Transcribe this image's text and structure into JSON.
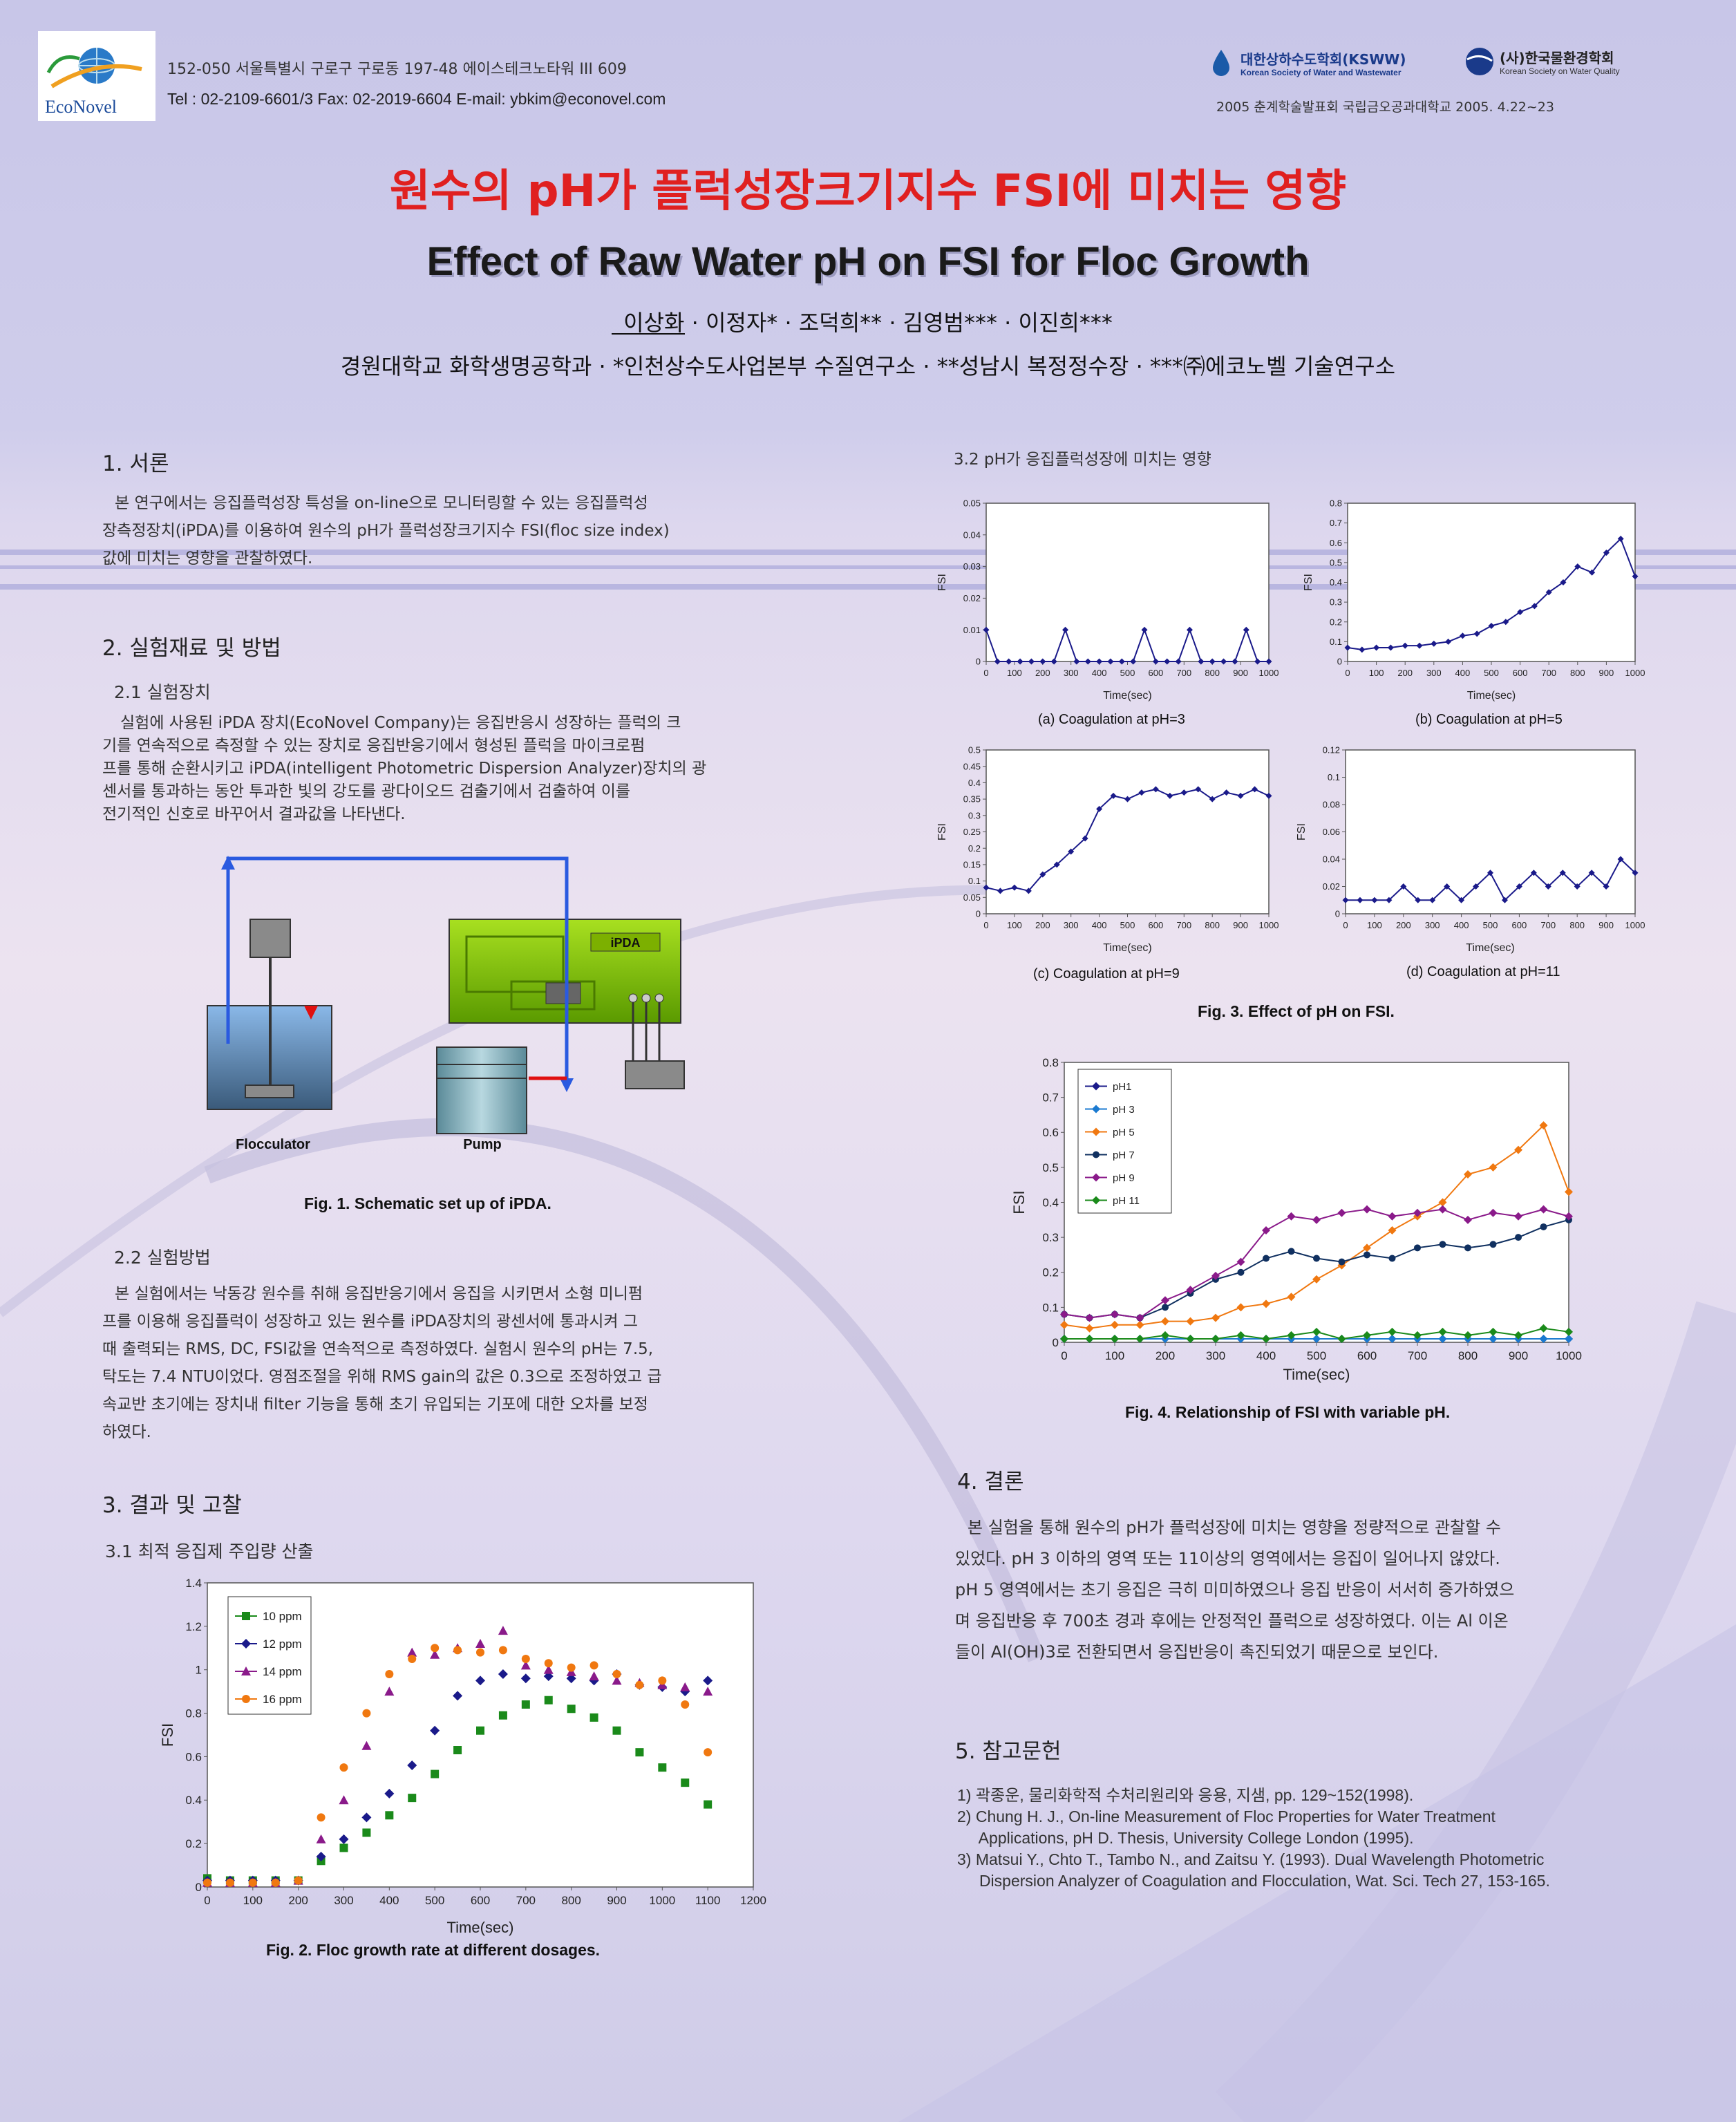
{
  "header": {
    "logo_text": "EcoNovel",
    "address": "152-050 서울특별시 구로구 구로동 197-48 에이스테크노타워 III 609",
    "contact": "Tel : 02-2109-6601/3   Fax: 02-2019-6604   E-mail: ybkim@econovel.com",
    "society1": "대한상하수도학회(KSWW)",
    "society1_en": "Korean Society of Water and Wastewater",
    "society2": "(사)한국물환경학회",
    "society2_en": "Korean Society on Water Quality",
    "conference": "2005 춘계학술발표회  국립금오공과대학교  2005. 4.22~23"
  },
  "title": {
    "korean": "원수의 pH가 플럭성장크기지수 FSI에 미치는 영향",
    "english": "Effect of Raw Water pH on FSI for Floc Growth",
    "authors": "이상화 · 이정자* · 조덕희** · 김영범*** · 이진희***",
    "affiliations": "경원대학교 화학생명공학과 · *인천상수도사업본부 수질연구소 · **성남시 복정정수장 · ***㈜에코노벨 기술연구소"
  },
  "section1": {
    "heading": "1. 서론",
    "lines": [
      "본 연구에서는 응집플럭성장 특성을 on-line으로 모니터링할 수 있는 응집플럭성",
      "장측정장치(iPDA)를 이용하여 원수의 pH가 플럭성장크기지수 FSI(floc size index)",
      "값에 미치는 영향을 관찰하였다."
    ]
  },
  "section2": {
    "heading": "2. 실험재료 및 방법",
    "sub1": "2.1 실험장치",
    "sub1_lines": [
      "실험에 사용된 iPDA 장치(EcoNovel Company)는 응집반응시 성장하는 플럭의 크",
      "기를 연속적으로 측정할 수 있는 장치로 응집반응기에서 형성된 플럭을 마이크로펌",
      "프를 통해 순환시키고 iPDA(intelligent Photometric Dispersion Analyzer)장치의 광",
      "센서를 통과하는 동안 투과한 빛의 강도를 광다이오드 검출기에서 검출하여 이를",
      "전기적인 신호로 바꾸어서 결과값을 나타낸다."
    ],
    "schematic": {
      "ipda_label": "iPDA",
      "flocculator_label": "Flocculator",
      "pump_label": "Pump"
    },
    "fig1_caption": "Fig. 1. Schematic set up of iPDA.",
    "sub2": "2.2 실험방법",
    "sub2_lines": [
      "본 실험에서는 낙동강 원수를 취해 응집반응기에서 응집을 시키면서 소형 미니펌",
      "프를 이용해 응집플럭이 성장하고 있는 원수를 iPDA장치의 광센서에 통과시켜 그",
      "때 출력되는 RMS, DC, FSI값을 연속적으로 측정하였다. 실험시 원수의 pH는 7.5,",
      "탁도는 7.4 NTU이었다. 영점조절을 위해 RMS gain의 값은 0.3으로  조정하였고 급",
      "속교반 초기에는 장치내 filter 기능을 통해 초기 유입되는 기포에 대한 오차를 보정",
      "하였다."
    ]
  },
  "section3": {
    "heading": "3. 결과 및 고찰",
    "sub1": "3.1 최적 응집제 주입량 산출",
    "fig2_caption": "Fig. 2. Floc growth rate at different dosages.",
    "sub2": "3.2 pH가 응집플럭성장에 미치는 영향",
    "fig3_caption": "Fig. 3.  Effect of pH on FSI.",
    "fig4_caption": "Fig. 4.  Relationship of FSI with variable pH."
  },
  "section4": {
    "heading": "4. 결론",
    "lines": [
      "본 실험을 통해 원수의 pH가 플럭성장에 미치는 영향을 정량적으로 관찰할 수",
      "있었다. pH 3 이하의 영역 또는 11이상의 영역에서는 응집이 일어나지 않았다.",
      "pH 5 영역에서는 초기 응집은 극히 미미하였으나 응집 반응이 서서히 증가하였으",
      "며 응집반응 후 700초 경과 후에는 안정적인 플럭으로 성장하였다. 이는 Al 이온",
      "들이 Al(OH)3로 전환되면서 응집반응이 촉진되었기 때문으로 보인다."
    ]
  },
  "section5": {
    "heading": "5. 참고문헌",
    "refs": [
      "1) 곽종운, 물리화학적 수처리원리와 응용, 지샘,  pp. 129~152(1998).",
      "2) Chung H. J., On-line Measurement of Floc Properties for Water Treatment",
      "     Applications, pH D. Thesis, University College London (1995).",
      "3) Matsui Y., Chto T., Tambo N., and Zaitsu Y. (1993). Dual Wavelength Photometric",
      "     Dispersion Analyzer of Coagulation and Flocculation, Wat. Sci. Tech 27, 153-165."
    ]
  },
  "colors": {
    "title_red": "#e02020",
    "green": "#1a8a1a",
    "navy": "#1a1a8a",
    "purple": "#8a1a8a",
    "orange": "#f07810",
    "darkblue": "#103060"
  },
  "chart_data": [
    {
      "id": "fig2",
      "type": "scatter",
      "xlabel": "Time(sec)",
      "ylabel": "FSI",
      "xlim": [
        0,
        1200
      ],
      "ylim": [
        0,
        1.4
      ],
      "xticks": [
        "0",
        "100",
        "200",
        "300",
        "400",
        "500",
        "600",
        "700",
        "800",
        "900",
        "1000",
        "1100",
        "1200"
      ],
      "yticks": [
        "0",
        "0.2",
        "0.4",
        "0.6",
        "0.8",
        "1",
        "1.2",
        "1.4"
      ],
      "x": [
        0,
        50,
        100,
        150,
        200,
        250,
        300,
        350,
        400,
        450,
        500,
        550,
        600,
        650,
        700,
        750,
        800,
        850,
        900,
        950,
        1000,
        1050,
        1100
      ],
      "series": [
        {
          "name": "10 ppm",
          "color": "#1a8a1a",
          "values": [
            0.04,
            0.03,
            0.03,
            0.03,
            0.03,
            0.12,
            0.18,
            0.25,
            0.33,
            0.41,
            0.52,
            0.63,
            0.72,
            0.79,
            0.84,
            0.86,
            0.82,
            0.78,
            0.72,
            0.62,
            0.55,
            0.48,
            0.38
          ]
        },
        {
          "name": "12 ppm",
          "color": "#1a1a8a",
          "values": [
            0.03,
            0.03,
            0.03,
            0.03,
            0.03,
            0.14,
            0.22,
            0.32,
            0.43,
            0.56,
            0.72,
            0.88,
            0.95,
            0.98,
            0.96,
            0.97,
            0.96,
            0.95,
            0.98,
            0.93,
            0.92,
            0.9,
            0.95
          ]
        },
        {
          "name": "14 ppm",
          "color": "#8a1a8a",
          "values": [
            0.02,
            0.02,
            0.02,
            0.02,
            0.03,
            0.22,
            0.4,
            0.65,
            0.9,
            1.08,
            1.07,
            1.1,
            1.12,
            1.18,
            1.02,
            1.0,
            0.99,
            0.97,
            0.95,
            0.94,
            0.93,
            0.92,
            0.9
          ]
        },
        {
          "name": "16 ppm",
          "color": "#f07810",
          "values": [
            0.02,
            0.02,
            0.02,
            0.02,
            0.03,
            0.32,
            0.55,
            0.8,
            0.98,
            1.05,
            1.1,
            1.09,
            1.08,
            1.09,
            1.05,
            1.03,
            1.01,
            1.02,
            0.98,
            0.93,
            0.95,
            0.84,
            0.62
          ]
        }
      ]
    },
    {
      "id": "fig3a",
      "type": "line",
      "title": "(a) Coagulation at pH=3",
      "xlabel": "Time(sec)",
      "ylabel": "FSI",
      "xlim": [
        0,
        1000
      ],
      "ylim": [
        0,
        0.05
      ],
      "xticks": [
        "0",
        "100",
        "200",
        "300",
        "400",
        "500",
        "600",
        "700",
        "800",
        "900",
        "1000"
      ],
      "yticks": [
        "0",
        "0.01",
        "0.02",
        "0.03",
        "0.04",
        "0.05"
      ],
      "x": [
        0,
        40,
        80,
        120,
        160,
        200,
        240,
        280,
        320,
        360,
        400,
        440,
        480,
        520,
        560,
        600,
        640,
        680,
        720,
        760,
        800,
        840,
        880,
        920,
        960,
        1000
      ],
      "values": [
        0.01,
        0,
        0,
        0,
        0,
        0,
        0,
        0.01,
        0,
        0,
        0,
        0,
        0,
        0,
        0.01,
        0,
        0,
        0,
        0.01,
        0,
        0,
        0,
        0,
        0.01,
        0,
        0
      ]
    },
    {
      "id": "fig3b",
      "type": "line",
      "title": "(b) Coagulation at pH=5",
      "xlabel": "Time(sec)",
      "ylabel": "FSI",
      "xlim": [
        0,
        1000
      ],
      "ylim": [
        0,
        0.8
      ],
      "xticks": [
        "0",
        "100",
        "200",
        "300",
        "400",
        "500",
        "600",
        "700",
        "800",
        "900",
        "1000"
      ],
      "yticks": [
        "0",
        "0.1",
        "0.2",
        "0.3",
        "0.4",
        "0.5",
        "0.6",
        "0.7",
        "0.8"
      ],
      "x": [
        0,
        50,
        100,
        150,
        200,
        250,
        300,
        350,
        400,
        450,
        500,
        550,
        600,
        650,
        700,
        750,
        800,
        850,
        900,
        950,
        1000
      ],
      "values": [
        0.07,
        0.06,
        0.07,
        0.07,
        0.08,
        0.08,
        0.09,
        0.1,
        0.13,
        0.14,
        0.18,
        0.2,
        0.25,
        0.28,
        0.35,
        0.4,
        0.48,
        0.45,
        0.55,
        0.62,
        0.43
      ]
    },
    {
      "id": "fig3c",
      "type": "line",
      "title": "(c) Coagulation at pH=9",
      "xlabel": "Time(sec)",
      "ylabel": "FSI",
      "xlim": [
        0,
        1000
      ],
      "ylim": [
        0,
        0.5
      ],
      "xticks": [
        "0",
        "100",
        "200",
        "300",
        "400",
        "500",
        "600",
        "700",
        "800",
        "900",
        "1000"
      ],
      "yticks": [
        "0",
        "0.05",
        "0.1",
        "0.15",
        "0.2",
        "0.25",
        "0.3",
        "0.35",
        "0.4",
        "0.45",
        "0.5"
      ],
      "x": [
        0,
        50,
        100,
        150,
        200,
        250,
        300,
        350,
        400,
        450,
        500,
        550,
        600,
        650,
        700,
        750,
        800,
        850,
        900,
        950,
        1000
      ],
      "values": [
        0.08,
        0.07,
        0.08,
        0.07,
        0.12,
        0.15,
        0.19,
        0.23,
        0.32,
        0.36,
        0.35,
        0.37,
        0.38,
        0.36,
        0.37,
        0.38,
        0.35,
        0.37,
        0.36,
        0.38,
        0.36
      ]
    },
    {
      "id": "fig3d",
      "type": "line",
      "title": "(d) Coagulation at pH=11",
      "xlabel": "Time(sec)",
      "ylabel": "FSI",
      "xlim": [
        0,
        1000
      ],
      "ylim": [
        0,
        0.12
      ],
      "xticks": [
        "0",
        "100",
        "200",
        "300",
        "400",
        "500",
        "600",
        "700",
        "800",
        "900",
        "1000"
      ],
      "yticks": [
        "0",
        "0.02",
        "0.04",
        "0.06",
        "0.08",
        "0.1",
        "0.12"
      ],
      "x": [
        0,
        50,
        100,
        150,
        200,
        250,
        300,
        350,
        400,
        450,
        500,
        550,
        600,
        650,
        700,
        750,
        800,
        850,
        900,
        950,
        1000
      ],
      "values": [
        0.01,
        0.01,
        0.01,
        0.01,
        0.02,
        0.01,
        0.01,
        0.02,
        0.01,
        0.02,
        0.03,
        0.01,
        0.02,
        0.03,
        0.02,
        0.03,
        0.02,
        0.03,
        0.02,
        0.04,
        0.03
      ]
    },
    {
      "id": "fig4",
      "type": "line",
      "xlabel": "Time(sec)",
      "ylabel": "FSI",
      "xlim": [
        0,
        1000
      ],
      "ylim": [
        0,
        0.8
      ],
      "xticks": [
        "0",
        "100",
        "200",
        "300",
        "400",
        "500",
        "600",
        "700",
        "800",
        "900",
        "1000"
      ],
      "yticks": [
        "0",
        "0.1",
        "0.2",
        "0.3",
        "0.4",
        "0.5",
        "0.6",
        "0.7",
        "0.8"
      ],
      "x": [
        0,
        50,
        100,
        150,
        200,
        250,
        300,
        350,
        400,
        450,
        500,
        550,
        600,
        650,
        700,
        750,
        800,
        850,
        900,
        950,
        1000
      ],
      "series": [
        {
          "name": "pH1",
          "color": "#1a1a8a",
          "values": [
            0.01,
            0.01,
            0.01,
            0.01,
            0.01,
            0.01,
            0.01,
            0.01,
            0.01,
            0.01,
            0.01,
            0.01,
            0.01,
            0.01,
            0.01,
            0.01,
            0.01,
            0.01,
            0.01,
            0.01,
            0.01
          ]
        },
        {
          "name": "pH 3",
          "color": "#1a7ad0",
          "values": [
            0.01,
            0.01,
            0.01,
            0.01,
            0.01,
            0.01,
            0.01,
            0.01,
            0.01,
            0.01,
            0.01,
            0.01,
            0.01,
            0.01,
            0.01,
            0.01,
            0.01,
            0.01,
            0.01,
            0.01,
            0.01
          ]
        },
        {
          "name": "pH 5",
          "color": "#f07810",
          "values": [
            0.05,
            0.04,
            0.05,
            0.05,
            0.06,
            0.06,
            0.07,
            0.1,
            0.11,
            0.13,
            0.18,
            0.22,
            0.27,
            0.32,
            0.36,
            0.4,
            0.48,
            0.5,
            0.55,
            0.62,
            0.43
          ]
        },
        {
          "name": "pH 7",
          "color": "#103060",
          "values": [
            0.08,
            0.07,
            0.08,
            0.07,
            0.1,
            0.14,
            0.18,
            0.2,
            0.24,
            0.26,
            0.24,
            0.23,
            0.25,
            0.24,
            0.27,
            0.28,
            0.27,
            0.28,
            0.3,
            0.33,
            0.35
          ]
        },
        {
          "name": "pH 9",
          "color": "#8a1a8a",
          "values": [
            0.08,
            0.07,
            0.08,
            0.07,
            0.12,
            0.15,
            0.19,
            0.23,
            0.32,
            0.36,
            0.35,
            0.37,
            0.38,
            0.36,
            0.37,
            0.38,
            0.35,
            0.37,
            0.36,
            0.38,
            0.36
          ]
        },
        {
          "name": "pH 11",
          "color": "#1a8a1a",
          "values": [
            0.01,
            0.01,
            0.01,
            0.01,
            0.02,
            0.01,
            0.01,
            0.02,
            0.01,
            0.02,
            0.03,
            0.01,
            0.02,
            0.03,
            0.02,
            0.03,
            0.02,
            0.03,
            0.02,
            0.04,
            0.03
          ]
        }
      ]
    }
  ]
}
